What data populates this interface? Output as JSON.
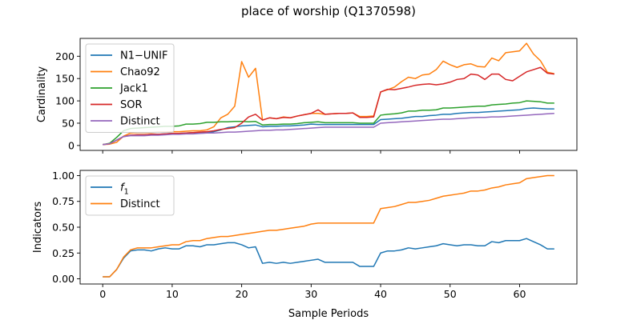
{
  "figure": {
    "title": "place of worship (Q1370598)",
    "xlabel": "Sample Periods"
  },
  "colors": {
    "blue": "#1f77b4",
    "orange": "#ff7f0e",
    "green": "#2ca02c",
    "red": "#d62728",
    "purple": "#9467bd"
  },
  "chart_data": [
    {
      "type": "line",
      "ylabel": "Cardinality",
      "xlim": [
        -3.25,
        68.25
      ],
      "ylim": [
        -11,
        240
      ],
      "xticks": [
        0,
        10,
        20,
        30,
        40,
        50,
        60
      ],
      "yticks": [
        0,
        50,
        100,
        150,
        200
      ],
      "legend_position": "upper-left",
      "grid": false,
      "series": [
        {
          "name": "N1−UNIF",
          "color": "#1f77b4",
          "values": [
            2,
            4,
            12,
            20,
            23,
            24,
            24,
            25,
            25,
            26,
            27,
            27,
            28,
            29,
            29,
            30,
            31,
            35,
            40,
            42,
            44,
            45,
            46,
            42,
            43,
            43,
            44,
            44,
            45,
            46,
            48,
            47,
            47,
            47,
            47,
            47,
            47,
            47,
            47,
            47,
            58,
            59,
            60,
            61,
            63,
            65,
            65,
            67,
            68,
            70,
            70,
            72,
            73,
            74,
            74,
            75,
            76,
            77,
            78,
            79,
            80,
            83,
            84,
            83,
            82,
            82
          ]
        },
        {
          "name": "Chao92",
          "color": "#ff7f0e",
          "values": [
            2,
            3,
            7,
            21,
            28,
            29,
            29,
            29,
            30,
            30,
            31,
            31,
            32,
            33,
            33,
            35,
            42,
            62,
            70,
            88,
            188,
            153,
            173,
            57,
            62,
            60,
            64,
            62,
            66,
            69,
            72,
            72,
            70,
            71,
            72,
            72,
            73,
            65,
            65,
            66,
            120,
            125,
            131,
            143,
            153,
            150,
            158,
            160,
            170,
            189,
            181,
            175,
            181,
            183,
            177,
            176,
            196,
            190,
            208,
            210,
            212,
            229,
            205,
            190,
            164,
            161
          ]
        },
        {
          "name": "Jack1",
          "color": "#2ca02c",
          "values": [
            2,
            5,
            18,
            33,
            38,
            39,
            40,
            41,
            42,
            43,
            43,
            44,
            48,
            48,
            49,
            52,
            52,
            53,
            53,
            54,
            54,
            53,
            54,
            46,
            47,
            47,
            48,
            48,
            49,
            51,
            52,
            53,
            51,
            51,
            51,
            51,
            51,
            50,
            50,
            50,
            68,
            70,
            71,
            73,
            77,
            77,
            79,
            79,
            80,
            84,
            84,
            85,
            86,
            87,
            88,
            88,
            91,
            92,
            93,
            95,
            96,
            100,
            99,
            98,
            95,
            95
          ]
        },
        {
          "name": "SOR",
          "color": "#d62728",
          "values": [
            2,
            4,
            12,
            20,
            23,
            24,
            24,
            25,
            25,
            26,
            27,
            27,
            28,
            29,
            30,
            31,
            33,
            36,
            38,
            40,
            50,
            64,
            70,
            57,
            62,
            60,
            63,
            62,
            66,
            69,
            72,
            80,
            70,
            71,
            72,
            72,
            73,
            63,
            63,
            64,
            120,
            126,
            125,
            128,
            131,
            135,
            137,
            138,
            136,
            138,
            142,
            148,
            150,
            160,
            158,
            148,
            160,
            160,
            148,
            145,
            155,
            165,
            170,
            175,
            162,
            160
          ]
        },
        {
          "name": "Distinct",
          "color": "#9467bd",
          "values": [
            2,
            4,
            12,
            20,
            22,
            22,
            22,
            23,
            23,
            24,
            25,
            25,
            26,
            26,
            27,
            28,
            28,
            29,
            30,
            30,
            31,
            32,
            33,
            34,
            34,
            35,
            35,
            36,
            37,
            38,
            39,
            40,
            41,
            41,
            41,
            41,
            41,
            41,
            41,
            41,
            50,
            51,
            52,
            53,
            54,
            55,
            56,
            57,
            58,
            59,
            59,
            60,
            61,
            62,
            63,
            63,
            64,
            64,
            65,
            66,
            67,
            68,
            69,
            70,
            71,
            72
          ]
        }
      ]
    },
    {
      "type": "line",
      "ylabel": "Indicators",
      "xlim": [
        -3.25,
        68.25
      ],
      "ylim": [
        -0.05,
        1.05
      ],
      "xticks": [
        0,
        10,
        20,
        30,
        40,
        50,
        60
      ],
      "yticks": [
        0.0,
        0.25,
        0.5,
        0.75,
        1.0
      ],
      "ytick_labels": [
        "0.00",
        "0.25",
        "0.50",
        "0.75",
        "1.00"
      ],
      "legend_position": "upper-left",
      "grid": false,
      "series": [
        {
          "name": "f1",
          "color": "#1f77b4",
          "values": [
            0.02,
            0.02,
            0.09,
            0.2,
            0.27,
            0.28,
            0.28,
            0.27,
            0.29,
            0.3,
            0.29,
            0.29,
            0.32,
            0.32,
            0.31,
            0.33,
            0.33,
            0.34,
            0.35,
            0.35,
            0.33,
            0.3,
            0.31,
            0.15,
            0.16,
            0.15,
            0.16,
            0.15,
            0.16,
            0.17,
            0.18,
            0.19,
            0.16,
            0.16,
            0.16,
            0.16,
            0.16,
            0.12,
            0.12,
            0.12,
            0.25,
            0.27,
            0.27,
            0.28,
            0.3,
            0.29,
            0.3,
            0.31,
            0.32,
            0.34,
            0.33,
            0.32,
            0.33,
            0.33,
            0.32,
            0.32,
            0.36,
            0.35,
            0.37,
            0.37,
            0.37,
            0.39,
            0.36,
            0.33,
            0.29,
            0.29
          ]
        },
        {
          "name": "Distinct",
          "color": "#ff7f0e",
          "values": [
            0.02,
            0.02,
            0.09,
            0.21,
            0.28,
            0.3,
            0.3,
            0.3,
            0.31,
            0.32,
            0.33,
            0.33,
            0.36,
            0.37,
            0.37,
            0.39,
            0.4,
            0.41,
            0.41,
            0.42,
            0.43,
            0.44,
            0.45,
            0.46,
            0.47,
            0.47,
            0.48,
            0.49,
            0.5,
            0.51,
            0.53,
            0.54,
            0.54,
            0.54,
            0.54,
            0.54,
            0.54,
            0.54,
            0.54,
            0.54,
            0.68,
            0.69,
            0.7,
            0.72,
            0.74,
            0.74,
            0.75,
            0.76,
            0.78,
            0.8,
            0.81,
            0.82,
            0.83,
            0.85,
            0.85,
            0.86,
            0.88,
            0.89,
            0.91,
            0.92,
            0.93,
            0.97,
            0.98,
            0.99,
            1.0,
            1.0
          ]
        }
      ]
    }
  ]
}
